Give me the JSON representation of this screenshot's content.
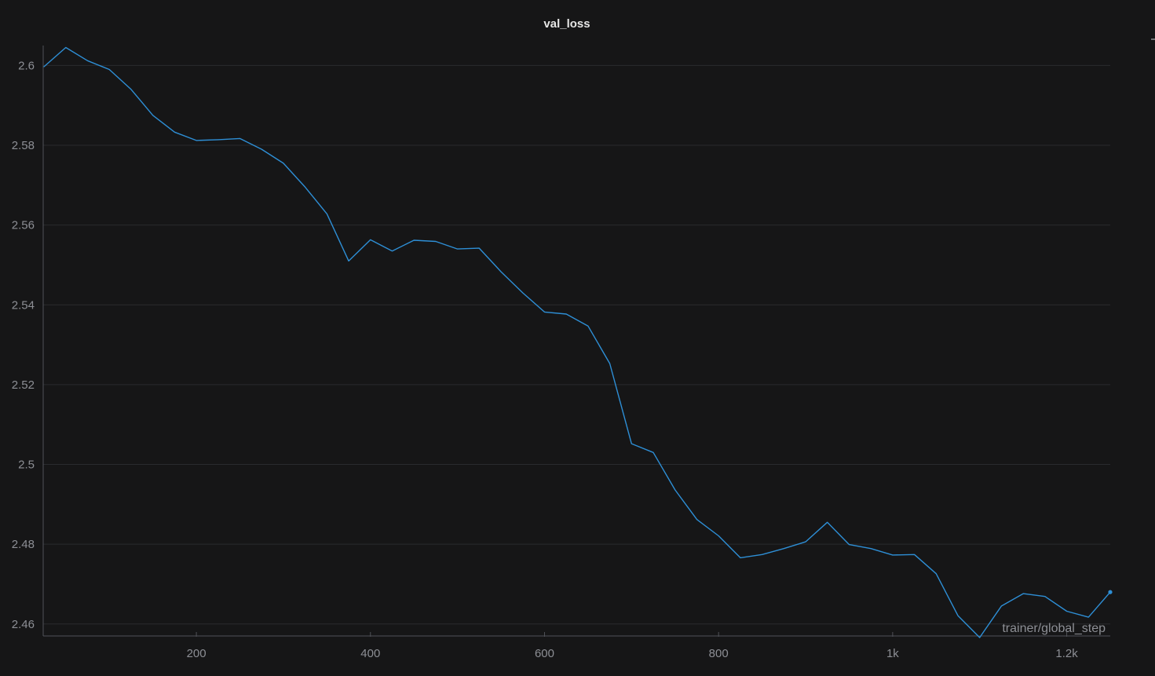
{
  "panel": {
    "title": "val_loss"
  },
  "chart_data": {
    "type": "line",
    "title": "val_loss",
    "xlabel": "trainer/global_step",
    "ylabel": "",
    "xlim": [
      24,
      1250
    ],
    "ylim": [
      2.457,
      2.605
    ],
    "xticks": [
      200,
      400,
      600,
      800,
      1000,
      1200
    ],
    "xtick_labels": [
      "200",
      "400",
      "600",
      "800",
      "1k",
      "1.2k"
    ],
    "yticks": [
      2.46,
      2.48,
      2.5,
      2.52,
      2.54,
      2.56,
      2.58,
      2.6
    ],
    "ytick_labels": [
      "2.46",
      "2.48",
      "2.5",
      "2.52",
      "2.54",
      "2.56",
      "2.58",
      "2.6"
    ],
    "grid": true,
    "colors": {
      "background": "#161617",
      "line": "#2e8fd6",
      "grid": "#2a2b2e",
      "axis": "#505258",
      "text": "#8d8f95",
      "title": "#e6e6e6"
    },
    "series": [
      {
        "x": [
          25,
          50,
          75,
          100,
          125,
          150,
          175,
          200,
          225,
          250,
          275,
          300,
          325,
          350,
          375,
          400,
          425,
          450,
          475,
          500,
          525,
          550,
          575,
          600,
          625,
          650,
          675,
          700,
          725,
          750,
          775,
          800,
          825,
          850,
          875,
          900,
          925,
          950,
          975,
          1000,
          1025,
          1050,
          1075,
          1100,
          1125,
          1150,
          1175,
          1200,
          1225,
          1250
        ],
        "values": [
          2.5997,
          2.6045,
          2.6012,
          2.599,
          2.594,
          2.5875,
          2.5833,
          2.5812,
          2.5814,
          2.5817,
          2.579,
          2.5755,
          2.5695,
          2.5628,
          2.551,
          2.5563,
          2.5535,
          2.5562,
          2.5559,
          2.554,
          2.5542,
          2.5483,
          2.543,
          2.5382,
          2.5377,
          2.5347,
          2.5253,
          2.5052,
          2.503,
          2.4936,
          2.4862,
          2.4821,
          2.4766,
          2.4774,
          2.4789,
          2.4806,
          2.4855,
          2.4799,
          2.4789,
          2.4773,
          2.4774,
          2.4726,
          2.4621,
          2.4566,
          2.4645,
          2.4676,
          2.4669,
          2.4632,
          2.4617,
          2.468
        ]
      }
    ]
  }
}
